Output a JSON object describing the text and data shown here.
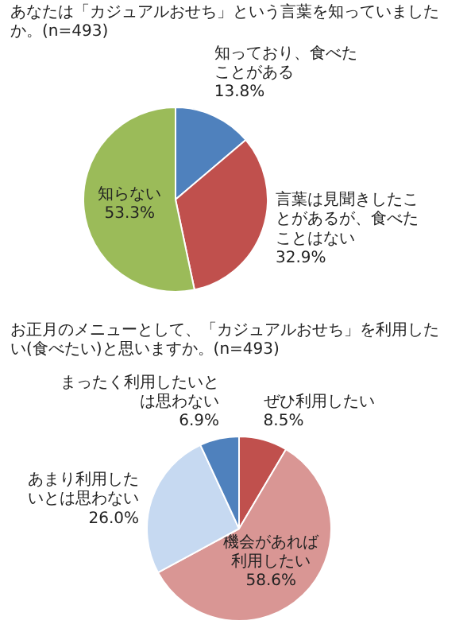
{
  "chart_data": [
    {
      "type": "pie",
      "title": "あなたは「カジュアルおせち」という言葉を知っていましたか。(n=493)",
      "categories": [
        "知っており、食べたことがある",
        "言葉は見聞きしたことがあるが、食べたことはない",
        "知らない"
      ],
      "values": [
        13.8,
        32.9,
        53.3
      ],
      "colors": [
        "#4f81bd",
        "#c0504d",
        "#9bbb59"
      ],
      "value_labels": [
        "13.8%",
        "32.9%",
        "53.3%"
      ]
    },
    {
      "type": "pie",
      "title": "お正月のメニューとして、「カジュアルおせち」を利用したい(食べたい)と思いますか。(n=493)",
      "categories": [
        "ぜひ利用したい",
        "機会があれば利用したい",
        "あまり利用したいとは思わない",
        "まったく利用したいとは思わない"
      ],
      "values": [
        8.5,
        58.6,
        26.0,
        6.9
      ],
      "colors": [
        "#c0504d",
        "#d99694",
        "#c6d9f1",
        "#4f81bd"
      ],
      "value_labels": [
        "8.5%",
        "58.6%",
        "26.0%",
        "6.9%"
      ]
    }
  ]
}
